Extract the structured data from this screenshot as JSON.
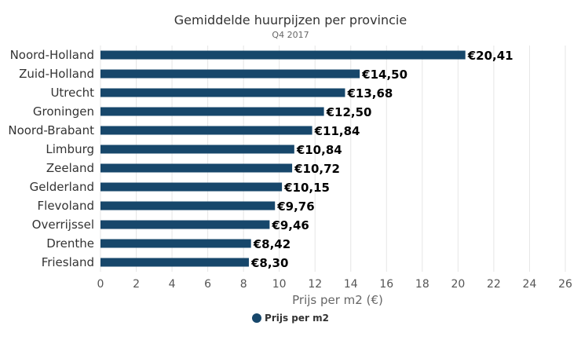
{
  "chart_data": {
    "type": "bar",
    "orientation": "horizontal",
    "title": "Gemiddelde huurpijzen per provincie",
    "subtitle": "Q4 2017",
    "xlabel": "Prijs per m2 (€)",
    "ylabel": "",
    "xlim": [
      0,
      26
    ],
    "ticks": [
      0,
      2,
      4,
      6,
      8,
      10,
      12,
      14,
      16,
      18,
      20,
      22,
      24,
      26
    ],
    "grid": true,
    "legend_position": "bottom",
    "categories": [
      "Noord-Holland",
      "Zuid-Holland",
      "Utrecht",
      "Groningen",
      "Noord-Brabant",
      "Limburg",
      "Zeeland",
      "Gelderland",
      "Flevoland",
      "Overrijssel",
      "Drenthe",
      "Friesland"
    ],
    "series": [
      {
        "name": "Prijs per m2",
        "color": "#17476b",
        "values": [
          20.41,
          14.5,
          13.68,
          12.5,
          11.84,
          10.84,
          10.72,
          10.15,
          9.76,
          9.46,
          8.42,
          8.3
        ],
        "data_labels": [
          "€20,41",
          "€14,50",
          "€13,68",
          "€12,50",
          "€11,84",
          "€10,84",
          "€10,72",
          "€10,15",
          "€9,76",
          "€9,46",
          "€8,42",
          "€8,30"
        ]
      }
    ]
  }
}
